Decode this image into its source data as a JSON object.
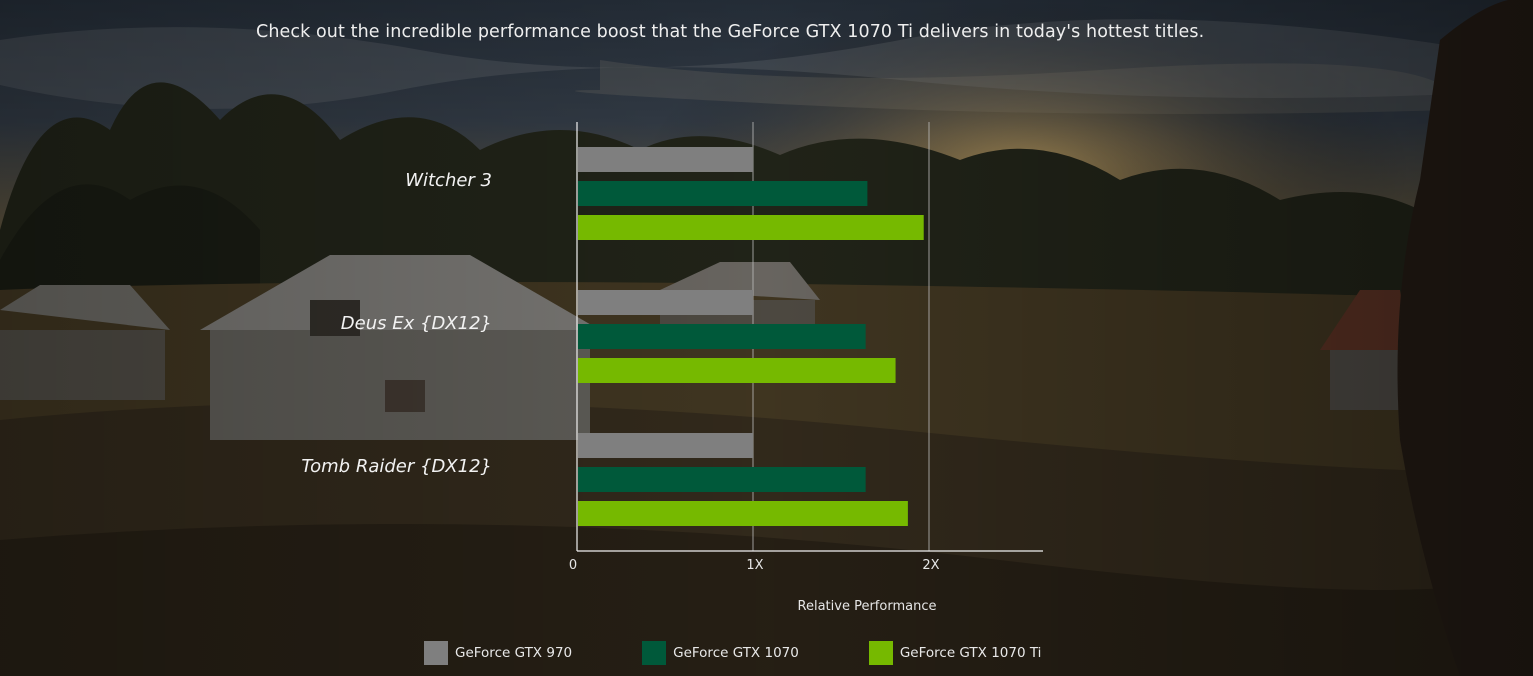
{
  "headline": "Check out the incredible performance boost that the GeForce GTX 1070 Ti delivers in today's hottest titles.",
  "colors": {
    "gtx970": "#7f7f7f",
    "gtx1070": "#00593a",
    "gtx1070ti": "#76b900"
  },
  "legend": [
    {
      "label": "GeForce GTX 970",
      "color": "#7f7f7f"
    },
    {
      "label": "GeForce GTX 1070",
      "color": "#00593a"
    },
    {
      "label": "GeForce GTX 1070 Ti",
      "color": "#76b900"
    }
  ],
  "chart_data": {
    "type": "bar",
    "orientation": "horizontal",
    "categories": [
      "Witcher 3",
      "Deus Ex {DX12}",
      "Tomb Raider {DX12}"
    ],
    "series": [
      {
        "name": "GeForce GTX 970",
        "values": [
          1.0,
          1.0,
          1.0
        ]
      },
      {
        "name": "GeForce GTX 1070",
        "values": [
          1.65,
          1.64,
          1.64
        ]
      },
      {
        "name": "GeForce GTX 1070 Ti",
        "values": [
          1.97,
          1.81,
          1.88
        ]
      }
    ],
    "ticks": [
      {
        "value": 0,
        "label": "0"
      },
      {
        "value": 1,
        "label": "1X"
      },
      {
        "value": 2,
        "label": "2X"
      }
    ],
    "xlabel": "Relative Performance",
    "xlim": [
      0,
      2.65
    ],
    "grid": true,
    "legend_position": "bottom"
  }
}
